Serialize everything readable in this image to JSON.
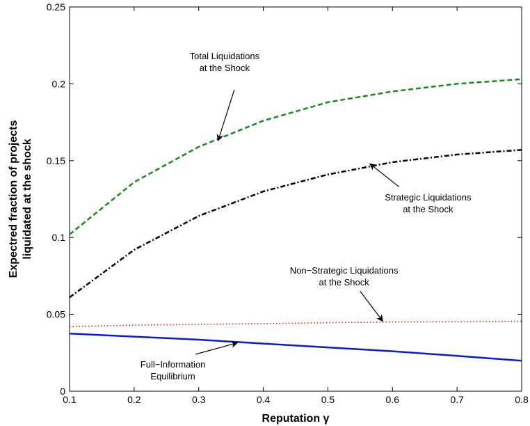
{
  "chart_data": {
    "type": "line",
    "title": "",
    "xlabel": "Reputation γ",
    "ylabel_lines": [
      "Expectred fraction of projects",
      "liquidated at the shock"
    ],
    "xlim": [
      0.1,
      0.8
    ],
    "ylim": [
      0,
      0.25
    ],
    "grid": false,
    "legend": "none",
    "x_ticks": [
      0.1,
      0.2,
      0.3,
      0.4,
      0.5,
      0.6,
      0.7,
      0.8
    ],
    "y_ticks": [
      0,
      0.05,
      0.1,
      0.15,
      0.2,
      0.25
    ],
    "x_tick_labels": [
      "0.1",
      "0.2",
      "0.3",
      "0.4",
      "0.5",
      "0.6",
      "0.7",
      "0.8"
    ],
    "y_tick_labels": [
      "0",
      "0.05",
      "0.1",
      "0.15",
      "0.2",
      "0.25"
    ],
    "series": [
      {
        "key": "total",
        "color": "#1a8a1a",
        "dash": "dashed",
        "x": [
          0.1,
          0.2,
          0.3,
          0.4,
          0.5,
          0.6,
          0.7,
          0.8
        ],
        "values": [
          0.102,
          0.136,
          0.159,
          0.176,
          0.188,
          0.195,
          0.2,
          0.203
        ]
      },
      {
        "key": "strategic",
        "color": "#000000",
        "dash": "dashdot",
        "x": [
          0.1,
          0.2,
          0.3,
          0.4,
          0.5,
          0.6,
          0.7,
          0.8
        ],
        "values": [
          0.061,
          0.092,
          0.114,
          0.13,
          0.141,
          0.149,
          0.154,
          0.157
        ]
      },
      {
        "key": "non_strategic",
        "color": "#e0201a",
        "dash": "dotted",
        "x": [
          0.1,
          0.2,
          0.3,
          0.4,
          0.5,
          0.6,
          0.7,
          0.8
        ],
        "values": [
          0.042,
          0.043,
          0.0435,
          0.044,
          0.0445,
          0.045,
          0.0452,
          0.0455
        ]
      },
      {
        "key": "full_info",
        "color": "#0a1ad8",
        "dash": "solid",
        "x": [
          0.1,
          0.2,
          0.3,
          0.4,
          0.5,
          0.6,
          0.7,
          0.8
        ],
        "values": [
          0.0375,
          0.0355,
          0.0335,
          0.031,
          0.0285,
          0.026,
          0.023,
          0.0198
        ]
      }
    ],
    "annotations": [
      {
        "key": "total",
        "lines": [
          "Total Liquidations",
          "at the Shock"
        ],
        "text_at": [
          0.34,
          0.216
        ],
        "arrow_from": [
          0.355,
          0.196
        ],
        "arrow_to": [
          0.33,
          0.163
        ]
      },
      {
        "key": "strategic",
        "lines": [
          "Strategic Liquidations",
          "at the Shock"
        ],
        "text_at": [
          0.655,
          0.124
        ],
        "arrow_from": [
          0.61,
          0.133
        ],
        "arrow_to": [
          0.565,
          0.148
        ]
      },
      {
        "key": "non_strategic",
        "lines": [
          "Non−Strategic Liquidations",
          "at the Shock"
        ],
        "text_at": [
          0.525,
          0.0765
        ],
        "arrow_from": [
          0.55,
          0.065
        ],
        "arrow_to": [
          0.585,
          0.0455
        ]
      },
      {
        "key": "full_info",
        "lines": [
          "Full−Information",
          "Equilibrium"
        ],
        "text_at": [
          0.26,
          0.0155
        ],
        "arrow_from": [
          0.295,
          0.024
        ],
        "arrow_to": [
          0.36,
          0.0315
        ]
      }
    ]
  }
}
